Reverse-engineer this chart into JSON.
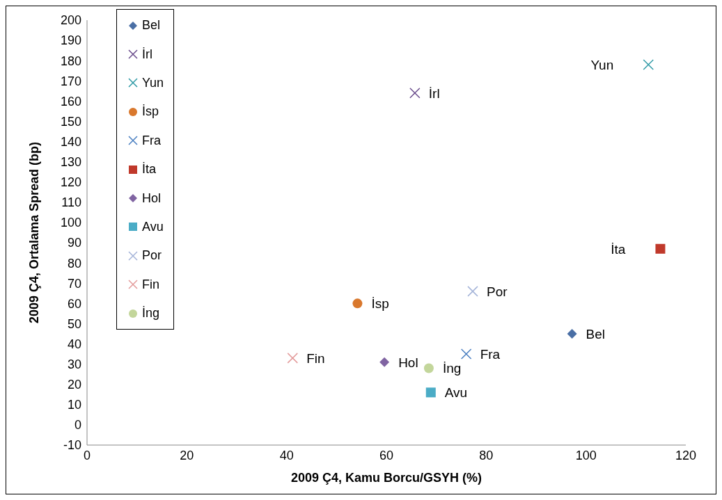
{
  "chart_data": {
    "type": "scatter",
    "xlabel": "2009 Ç4, Kamu Borcu/GSYH (%)",
    "ylabel": "2009 Ç4, Ortalama Spread (bp)",
    "xlim": [
      0,
      120
    ],
    "xticks": [
      0,
      20,
      40,
      60,
      80,
      100,
      120
    ],
    "ylim": [
      -10,
      200
    ],
    "yticks": [
      -10,
      0,
      10,
      20,
      30,
      40,
      50,
      60,
      70,
      80,
      90,
      100,
      110,
      120,
      130,
      140,
      150,
      160,
      170,
      180,
      190,
      200
    ],
    "grid": false,
    "legend": "top left",
    "series": [
      {
        "name": "Bel",
        "color": "#4a6fa5",
        "marker": "diamond",
        "x": [
          97.2
        ],
        "values": [
          45
        ]
      },
      {
        "name": "İrl",
        "color": "#6a4c8c",
        "marker": "cross",
        "x": [
          65.7
        ],
        "values": [
          164
        ]
      },
      {
        "name": "Yun",
        "color": "#2f9aa6",
        "marker": "cross",
        "x": [
          112.5
        ],
        "values": [
          178
        ]
      },
      {
        "name": "İsp",
        "color": "#d9782d",
        "marker": "circle",
        "x": [
          54.2
        ],
        "values": [
          60
        ]
      },
      {
        "name": "Fra",
        "color": "#4a7fc1",
        "marker": "cross",
        "x": [
          76
        ],
        "values": [
          35
        ]
      },
      {
        "name": "İta",
        "color": "#c0392b",
        "marker": "square",
        "x": [
          114.9
        ],
        "values": [
          87
        ]
      },
      {
        "name": "Hol",
        "color": "#8064a2",
        "marker": "diamond",
        "x": [
          59.6
        ],
        "values": [
          31
        ]
      },
      {
        "name": "Avu",
        "color": "#4bacc6",
        "marker": "square",
        "x": [
          68.9
        ],
        "values": [
          16
        ]
      },
      {
        "name": "Por",
        "color": "#a5b4d9",
        "marker": "cross",
        "x": [
          77.3
        ],
        "values": [
          66
        ]
      },
      {
        "name": "Fin",
        "color": "#e39a9a",
        "marker": "cross",
        "x": [
          41.2
        ],
        "values": [
          33
        ]
      },
      {
        "name": "İng",
        "color": "#c3d69b",
        "marker": "circle",
        "x": [
          68.5
        ],
        "values": [
          28
        ]
      }
    ]
  }
}
